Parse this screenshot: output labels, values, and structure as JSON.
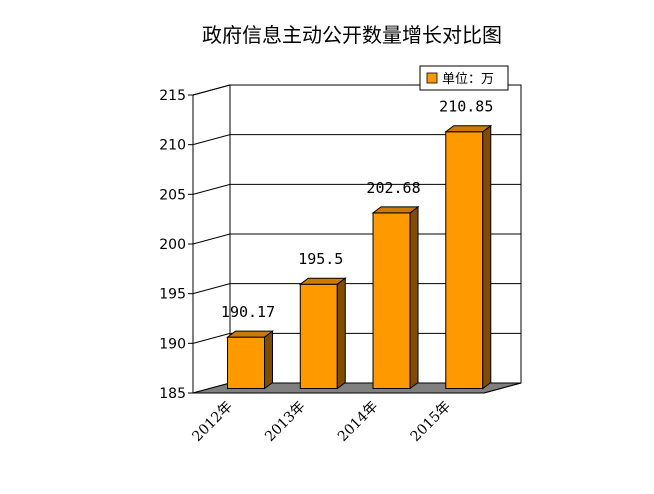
{
  "chart_data": {
    "type": "bar",
    "title": "政府信息主动公开数量增长对比图",
    "categories": [
      "2012年",
      "2013年",
      "2014年",
      "2015年"
    ],
    "series": [
      {
        "name": "单位：万",
        "values": [
          190.17,
          195.5,
          202.68,
          210.85
        ],
        "labels": [
          "190.17",
          "195.5",
          "202.68",
          "210.85"
        ]
      }
    ],
    "ylim": [
      185,
      215
    ],
    "yticks": [
      185,
      190,
      195,
      200,
      205,
      210,
      215
    ],
    "grid": true,
    "legend_position": "top-right",
    "three_d": true,
    "colors": {
      "bar_front": "#ff9900",
      "bar_side": "#7f4c00",
      "bar_top": "#cc7a00",
      "floor": "#808080",
      "back_wall": "#ffffff",
      "axis": "#000000"
    }
  }
}
